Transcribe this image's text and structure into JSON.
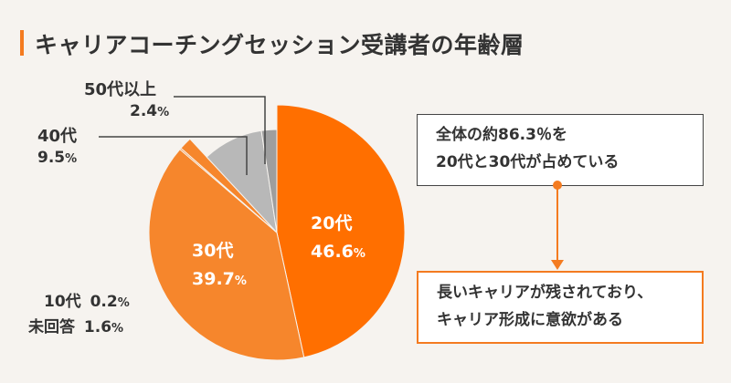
{
  "title": "キャリアコーチングセッション受講者の年齢層",
  "colors": {
    "accent": "#f47b20",
    "slice_20s": "#ff6f00",
    "slice_30s": "#f6862c",
    "slice_40s": "#ffffff",
    "slice_50s": "#a7a7a7",
    "leader": "#444444",
    "background": "#f6f3ef"
  },
  "chart_data": {
    "type": "pie",
    "title": "キャリアコーチングセッション受講者の年齢層",
    "slices": [
      {
        "label": "20代",
        "value": 46.6,
        "value_text": "46.6",
        "color": "#ff6f00"
      },
      {
        "label": "30代",
        "value": 39.7,
        "value_text": "39.7",
        "color": "#f6862c"
      },
      {
        "label": "10代",
        "value": 0.2,
        "value_text": "0.2",
        "color": "#f6862c"
      },
      {
        "label": "未回答",
        "value": 1.6,
        "value_text": "1.6",
        "color": "#f6862c"
      },
      {
        "label": "40代",
        "value": 9.5,
        "value_text": "9.5",
        "color": "#b8b8b8"
      },
      {
        "label": "50代以上",
        "value": 2.4,
        "value_text": "2.4",
        "color": "#9e9e9e"
      }
    ],
    "unit": "%"
  },
  "callouts": {
    "top": {
      "line1": "全体の約86.3％を",
      "line2": "20代と30代が占めている"
    },
    "bottom": {
      "line1": "長いキャリアが残されており、",
      "line2": "キャリア形成に意欲がある"
    }
  },
  "unit_symbol": "%"
}
